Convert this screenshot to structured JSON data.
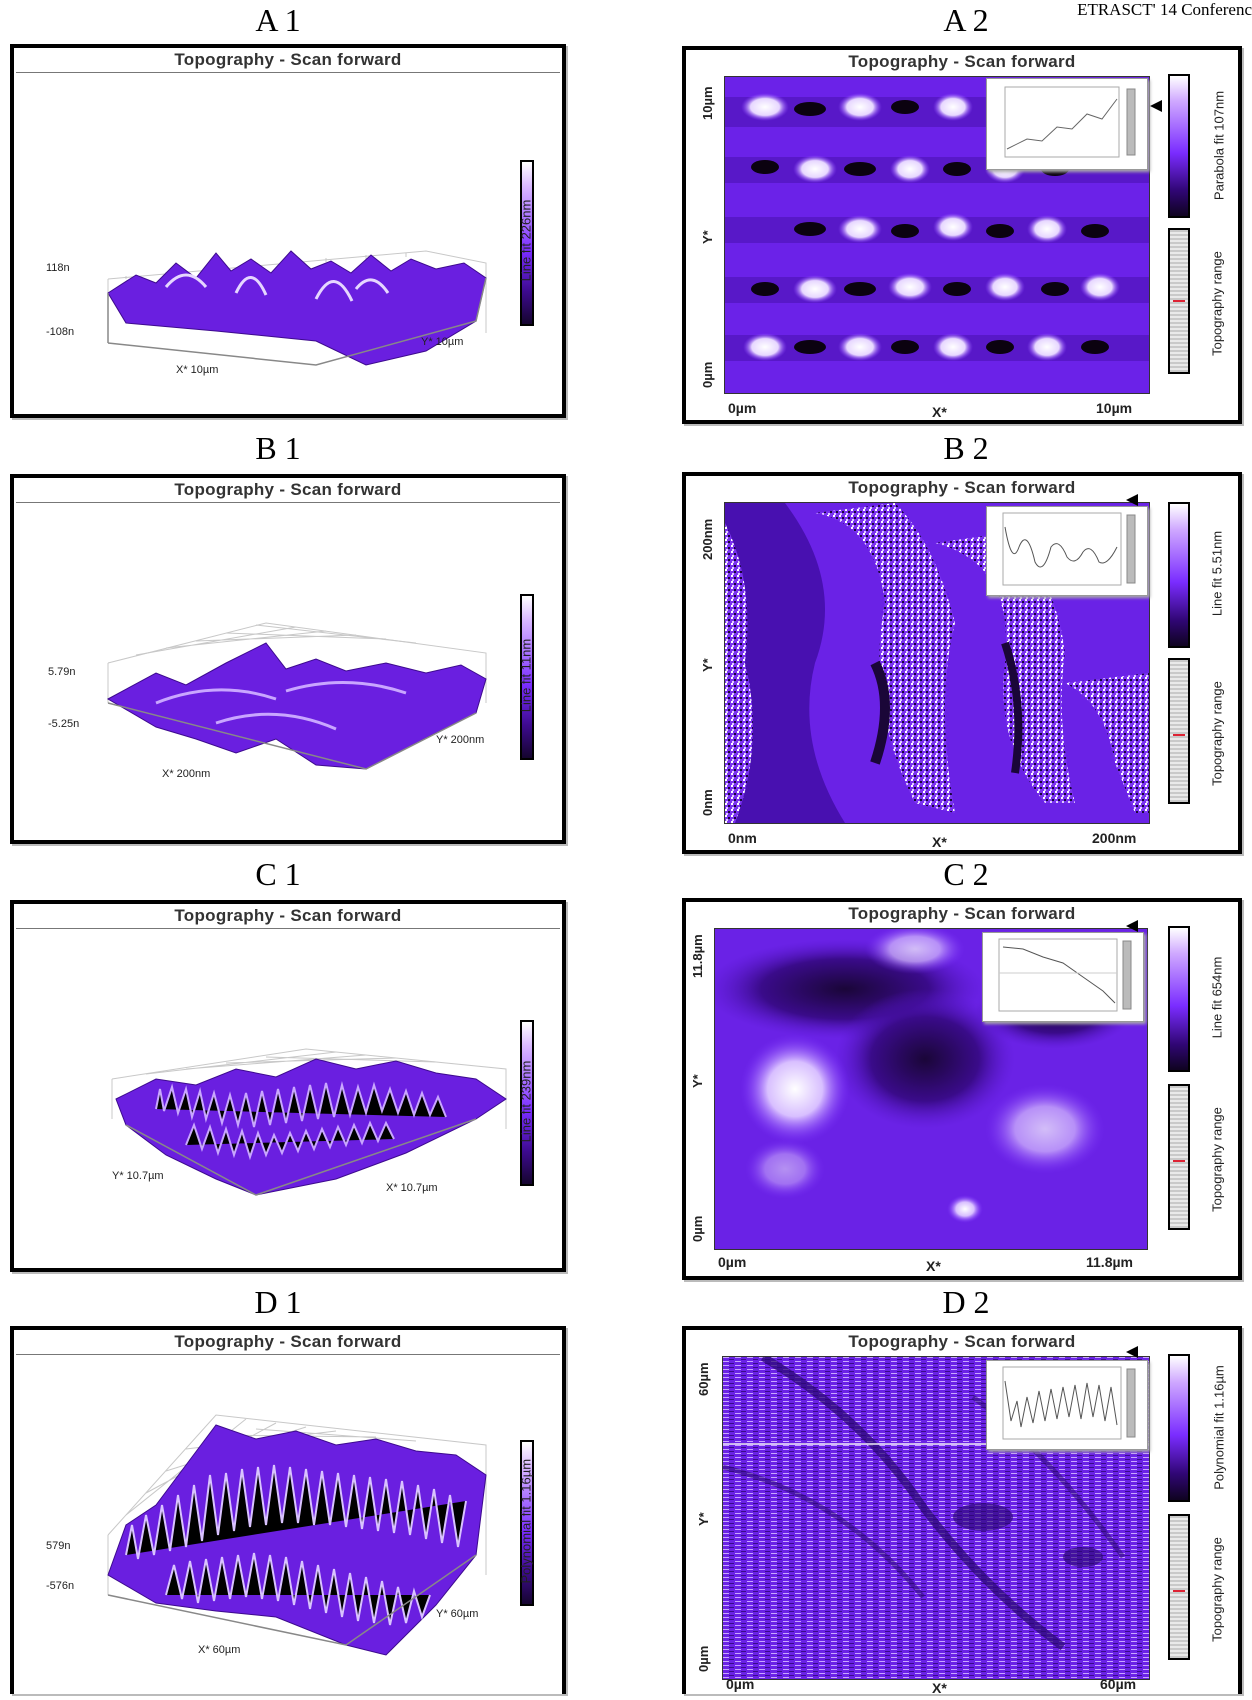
{
  "header": {
    "text": "ETRASCT' 14 Conferenc"
  },
  "panels": {
    "A1": {
      "label": "A 1",
      "title": "Topography - Scan forward",
      "z_max": "118n",
      "z_min": "-108n",
      "x_axis": "X* 10µm",
      "y_axis": "Y* 10µm",
      "scale": "Line fit 226nm"
    },
    "A2": {
      "label": "A 2",
      "title": "Topography - Scan forward",
      "y_top": "10µm",
      "y_mid": "Y*",
      "y_bottom": "0µm",
      "x_left": "0µm",
      "x_mid": "X*",
      "x_right": "10µm",
      "scale": "Parabola fit 107nm",
      "range": "Topography range"
    },
    "B1": {
      "label": "B 1",
      "title": "Topography - Scan forward",
      "z_max": "5.79n",
      "z_min": "-5.25n",
      "x_axis": "X* 200nm",
      "y_axis": "Y* 200nm",
      "scale": "Line fit 11nm"
    },
    "B2": {
      "label": "B 2",
      "title": "Topography - Scan forward",
      "y_top": "200nm",
      "y_mid": "Y*",
      "y_bottom": "0nm",
      "x_left": "0nm",
      "x_mid": "X*",
      "x_right": "200nm",
      "scale": "Line fit 5.51nm",
      "range": "Topography range"
    },
    "C1": {
      "label": "C 1",
      "title": "Topography - Scan forward",
      "x_axis": "X* 10.7µm",
      "y_axis": "Y* 10.7µm",
      "scale": "Line fit 239nm"
    },
    "C2": {
      "label": "C 2",
      "title": "Topography - Scan forward",
      "y_top": "11.8µm",
      "y_mid": "Y*",
      "y_bottom": "0µm",
      "x_left": "0µm",
      "x_mid": "X*",
      "x_right": "11.8µm",
      "scale": "Line fit 654nm",
      "range": "Topography range"
    },
    "D1": {
      "label": "D 1",
      "title": "Topography - Scan forward",
      "z_max": "579n",
      "z_min": "-576n",
      "x_axis": "X* 60µm",
      "y_axis": "Y* 60µm",
      "scale": "Polynomial fit 1.16µm"
    },
    "D2": {
      "label": "D 2",
      "title": "Topography - Scan forward",
      "y_top": "60µm",
      "y_mid": "Y*",
      "y_bottom": "0µm",
      "x_left": "0µm",
      "x_mid": "X*",
      "x_right": "60µm",
      "scale": "Polynomial fit 1.16µm",
      "range": "Topography range"
    }
  },
  "colors": {
    "surface": "#6a1fe0",
    "highlight": "#f2e6ff",
    "dark": "#14052e"
  }
}
